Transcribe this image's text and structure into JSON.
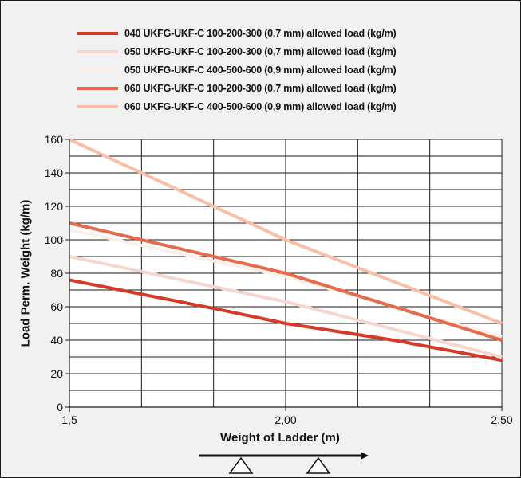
{
  "chart_data": {
    "type": "line",
    "title": "",
    "xlabel": "Weight of Ladder (m)",
    "ylabel": "Load Perm. Weight (kg/m)",
    "xlim": [
      1.5,
      2.5
    ],
    "ylim": [
      0,
      160
    ],
    "x_ticks": [
      "1,5",
      "2,00",
      "2,50"
    ],
    "y_ticks": [
      "0",
      "20",
      "40",
      "60",
      "80",
      "100",
      "120",
      "140",
      "160"
    ],
    "legend_position": "top",
    "grid": true,
    "series": [
      {
        "name": "040 UKFG-UKF-C 100-200-300 (0,7 mm) allowed load (kg/m)",
        "color": "#d43a2a",
        "x": [
          1.5,
          1.8333,
          2.0,
          2.25,
          2.5
        ],
        "y": [
          76,
          59,
          50,
          40,
          28
        ]
      },
      {
        "name": "050 UKFG-UKF-C 100-200-300 (0,7 mm) allowed load (kg/m)",
        "color": "#f6d7cd",
        "x": [
          1.5,
          2.0,
          2.5
        ],
        "y": [
          90,
          63,
          30
        ]
      },
      {
        "name": "050 UKFG-UKF-C 400-500-600 (0,9 mm) allowed load (kg/m)",
        "color": "#fbefe9",
        "x": [
          1.5,
          2.0,
          2.5
        ],
        "y": [
          106,
          78,
          42
        ]
      },
      {
        "name": "060 UKFG-UKF-C 100-200-300 (0,7 mm) allowed load (kg/m)",
        "color": "#e66a4c",
        "x": [
          1.5,
          2.0,
          2.5
        ],
        "y": [
          110,
          80,
          40
        ]
      },
      {
        "name": "060 UKFG-UKF-C 400-500-600 (0,9 mm) allowed load (kg/m)",
        "color": "#f8bfa6",
        "x": [
          1.5,
          2.0,
          2.5
        ],
        "y": [
          160,
          100,
          50
        ]
      }
    ]
  }
}
